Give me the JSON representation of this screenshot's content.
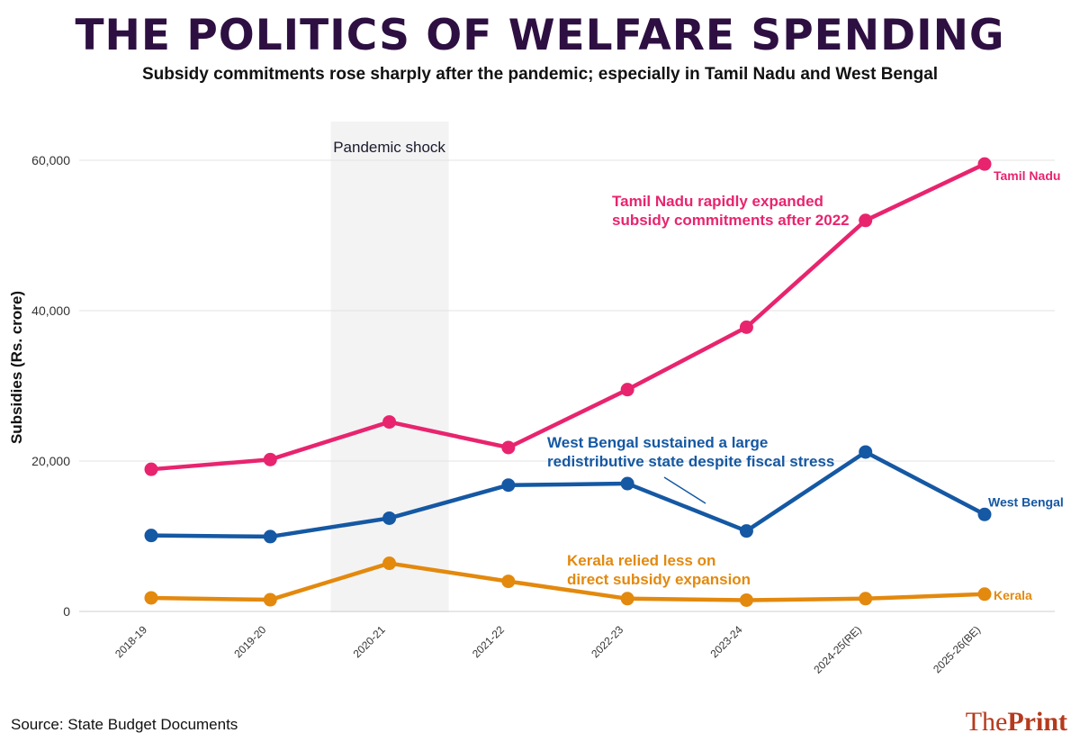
{
  "header": {
    "title": "THE POLITICS OF WELFARE SPENDING",
    "subtitle": "Subsidy commitments rose sharply after the pandemic; especially in Tamil Nadu and West Bengal"
  },
  "footer": {
    "source": "Source: State Budget Documents",
    "brand_part1": "The",
    "brand_part2": "Print"
  },
  "colors": {
    "tamil_nadu": "#e8246f",
    "west_bengal": "#1558a3",
    "kerala": "#e3890e",
    "title": "#2e0f42",
    "shade": "#f3f3f3",
    "brand": "#b53a1d"
  },
  "chart_data": {
    "type": "line",
    "title": "THE POLITICS OF WELFARE SPENDING",
    "subtitle": "Subsidy commitments rose sharply after the pandemic; especially in Tamil Nadu and West Bengal",
    "xlabel": "",
    "ylabel": "Subsidies (Rs. crore)",
    "categories": [
      "2018-19",
      "2019-20",
      "2020-21",
      "2021-22",
      "2022-23",
      "2023-24",
      "2024-25(RE)",
      "2025-26(BE)"
    ],
    "ylim": [
      0,
      65000
    ],
    "yticks": [
      0,
      20000,
      40000,
      60000
    ],
    "ytick_labels": [
      "0",
      "20,000",
      "40,000",
      "60,000"
    ],
    "grid": "horizontal",
    "legend": "none (direct labels at line ends)",
    "series": [
      {
        "name": "Tamil Nadu",
        "color": "#e8246f",
        "values": [
          18900,
          20200,
          25200,
          21800,
          29500,
          37800,
          52000,
          59500
        ]
      },
      {
        "name": "West Bengal",
        "color": "#1558a3",
        "values": [
          10100,
          9950,
          12400,
          16800,
          17000,
          10700,
          21200,
          12900
        ]
      },
      {
        "name": "Kerala",
        "color": "#e3890e",
        "values": [
          1800,
          1550,
          6400,
          4000,
          1700,
          1500,
          1700,
          2300
        ]
      }
    ],
    "shaded_region": {
      "label": "Pandemic shock",
      "from_category": "2020-21"
    },
    "annotations": [
      {
        "text": [
          "Tamil Nadu rapidly expanded",
          "subsidy commitments after 2022"
        ],
        "series": "Tamil Nadu"
      },
      {
        "text": [
          "West Bengal sustained a large",
          "redistributive state despite fiscal stress"
        ],
        "series": "West Bengal"
      },
      {
        "text": [
          "Kerala relied less on",
          "direct subsidy expansion"
        ],
        "series": "Kerala"
      }
    ]
  }
}
